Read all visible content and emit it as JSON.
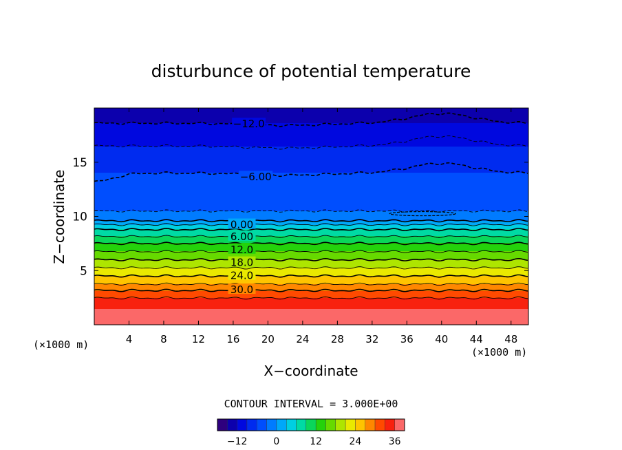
{
  "chart_data": {
    "type": "heatmap",
    "title": "disturbunce of potential temperature",
    "xlabel": "X−coordinate",
    "ylabel": "Z−coordinate",
    "x_unit": "(×1000 m)",
    "y_unit": "(×1000 m)",
    "xlim": [
      0,
      50
    ],
    "ylim": [
      0,
      20
    ],
    "x_ticks": [
      4,
      8,
      12,
      16,
      20,
      24,
      28,
      32,
      36,
      40,
      44,
      48
    ],
    "x_tick_labels": [
      "4",
      "8",
      "12",
      "16",
      "20",
      "24",
      "28",
      "32",
      "36",
      "40",
      "44",
      "48"
    ],
    "y_ticks": [
      5,
      10,
      15
    ],
    "y_tick_labels": [
      "5",
      "10",
      "15"
    ],
    "contour_interval_text": "CONTOUR INTERVAL = 3.000E+00",
    "contour_interval": 3.0,
    "contour_labels": [
      {
        "text": "−12.0",
        "x": 17.8,
        "z": 18.6
      },
      {
        "text": "−6.00",
        "x": 18.6,
        "z": 13.7
      },
      {
        "text": "0.00",
        "x": 17.0,
        "z": 9.3
      },
      {
        "text": "6.00",
        "x": 17.0,
        "z": 8.2
      },
      {
        "text": "12.0",
        "x": 17.0,
        "z": 7.0
      },
      {
        "text": "18.0",
        "x": 17.0,
        "z": 5.8
      },
      {
        "text": "24.0",
        "x": 17.0,
        "z": 4.6
      },
      {
        "text": "30.0",
        "x": 17.0,
        "z": 3.3
      }
    ],
    "colorbar": {
      "range": [
        -18,
        39
      ],
      "ticks": [
        -12,
        0,
        12,
        24,
        36
      ],
      "tick_labels": [
        "−12",
        "0",
        "12",
        "24",
        "36"
      ]
    },
    "profile_z": [
      0,
      1.5,
      2.2,
      3.0,
      3.5,
      4.5,
      6.0,
      7.5,
      9.0,
      9.6,
      10.5,
      12.5,
      14.5,
      16.5,
      17.5,
      18.6,
      20
    ],
    "profile_theta": [
      37,
      36,
      34,
      31,
      28,
      24,
      18,
      12,
      5,
      0,
      -3,
      -4.5,
      -6.5,
      -9,
      -10,
      -12,
      -15
    ]
  }
}
